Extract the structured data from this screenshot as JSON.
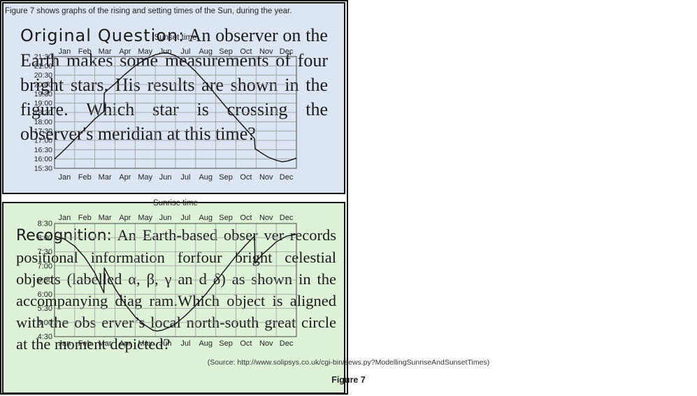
{
  "question": {
    "lead": "Original Question:",
    "body": "An observer on the Earth makes some measurements of four bright stars. His results are shown in the figure. Which star is crossing the observer's meridian at this time?"
  },
  "recognition": {
    "lead": "Recognition:",
    "body": "An Earth-based obser ver records positional information forfour bright celestial objects (labelled α, β, γ an d δ) as shown in the accompanying diag ram.Which object is aligned with the obs erver’s local north-south great circle at the moment depicted?"
  },
  "figure": {
    "caption": "Figure 7 shows graphs of the rising and setting times of the Sun, during the year.",
    "source": "(Source: http://www.solipsys.co.uk/cgi-bin/sews.py?ModellingSunriseAndSunsetTimes)",
    "label": "Figure 7"
  },
  "chart_data": [
    {
      "type": "line",
      "title": "Sunset time",
      "months": [
        "Jan",
        "Feb",
        "Mar",
        "Apr",
        "May",
        "Jun",
        "Jul",
        "Aug",
        "Sep",
        "Oct",
        "Nov",
        "Dec"
      ],
      "y_ticks": [
        "21:30",
        "21:00",
        "20:30",
        "20:00",
        "19:30",
        "19:00",
        "18:30",
        "18:00",
        "17:30",
        "17:00",
        "16:30",
        "16:00",
        "15:30"
      ],
      "ylim": [
        15.5,
        21.5
      ],
      "x": [
        0,
        0.5,
        1,
        1.5,
        2,
        2.45,
        2.47,
        3,
        3.5,
        4,
        4.5,
        5,
        5.4,
        5.6,
        6,
        6.5,
        7,
        7.5,
        8,
        8.5,
        9,
        9.5,
        9.92,
        9.95,
        10.3,
        10.6,
        11,
        11.3,
        11.6,
        12
      ],
      "y": [
        16.0,
        16.5,
        17.05,
        17.6,
        18.15,
        18.55,
        19.55,
        20.05,
        20.55,
        21.0,
        21.35,
        21.6,
        21.7,
        21.7,
        21.55,
        21.2,
        20.7,
        20.1,
        19.45,
        18.8,
        18.2,
        17.6,
        17.1,
        16.55,
        16.3,
        16.1,
        15.93,
        15.85,
        15.9,
        16.05
      ]
    },
    {
      "type": "line",
      "title": "Sunrise time",
      "months": [
        "Jan",
        "Feb",
        "Mar",
        "Apr",
        "May",
        "Jun",
        "Jul",
        "Aug",
        "Sep",
        "Oct",
        "Nov",
        "Dec"
      ],
      "y_ticks": [
        "8:30",
        "8:00",
        "7:30",
        "7:00",
        "6:30",
        "6:00",
        "5:30",
        "5:00",
        "4:30"
      ],
      "ylim": [
        4.5,
        8.5
      ],
      "x": [
        0,
        0.5,
        1,
        1.5,
        2,
        2.45,
        2.47,
        3,
        3.5,
        4,
        4.5,
        4.9,
        5.1,
        5.3,
        5.7,
        6,
        6.5,
        7,
        7.5,
        8,
        8.5,
        9,
        9.5,
        9.92,
        9.95,
        10.3,
        10.7,
        11,
        11.5,
        12
      ],
      "y": [
        8.05,
        7.95,
        7.7,
        7.3,
        6.75,
        6.05,
        6.93,
        6.2,
        5.65,
        5.2,
        4.9,
        4.72,
        4.7,
        4.72,
        4.83,
        4.95,
        5.25,
        5.6,
        6.0,
        6.45,
        6.9,
        7.35,
        7.75,
        8.05,
        7.1,
        7.4,
        7.65,
        7.85,
        8.05,
        8.12
      ]
    }
  ]
}
